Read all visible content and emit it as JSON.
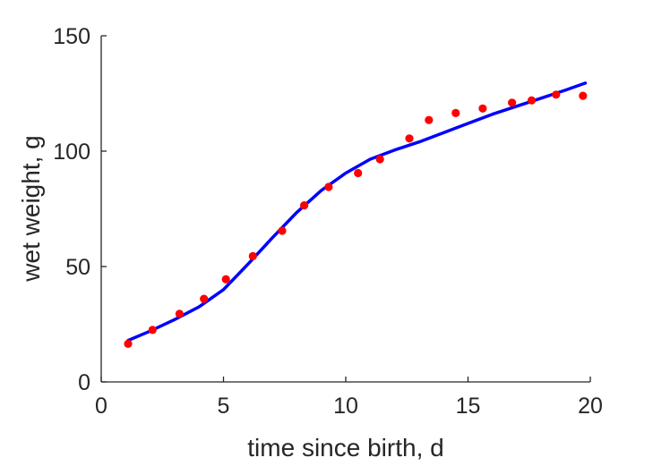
{
  "chart_data": {
    "type": "scatter",
    "xlabel": "time since birth, d",
    "ylabel": "wet weight, g",
    "xlim": [
      0,
      20
    ],
    "ylim": [
      0,
      150
    ],
    "x_ticks": [
      "0",
      "5",
      "10",
      "15",
      "20"
    ],
    "y_ticks": [
      "0",
      "50",
      "100",
      "150"
    ],
    "grid": false,
    "legend": "none",
    "series": [
      {
        "kind": "points",
        "color": "#ff0000",
        "points": [
          [
            1.1,
            16.5
          ],
          [
            2.1,
            22.5
          ],
          [
            3.2,
            29.5
          ],
          [
            4.2,
            36.0
          ],
          [
            5.1,
            44.5
          ],
          [
            6.2,
            54.5
          ],
          [
            7.4,
            65.5
          ],
          [
            8.3,
            76.5
          ],
          [
            9.3,
            84.5
          ],
          [
            10.5,
            90.5
          ],
          [
            11.4,
            96.5
          ],
          [
            12.6,
            105.5
          ],
          [
            13.4,
            113.5
          ],
          [
            14.5,
            116.5
          ],
          [
            15.6,
            118.5
          ],
          [
            16.8,
            121.0
          ],
          [
            17.6,
            122.0
          ],
          [
            18.6,
            124.5
          ],
          [
            19.7,
            124.0
          ]
        ]
      },
      {
        "kind": "line",
        "color": "#0000ff",
        "points": [
          [
            1.1,
            18.0
          ],
          [
            2.0,
            22.0
          ],
          [
            3.0,
            27.0
          ],
          [
            4.0,
            32.5
          ],
          [
            5.0,
            40.0
          ],
          [
            6.0,
            51.0
          ],
          [
            7.0,
            62.5
          ],
          [
            8.0,
            73.5
          ],
          [
            9.0,
            83.0
          ],
          [
            10.0,
            90.5
          ],
          [
            11.0,
            96.5
          ],
          [
            12.0,
            100.5
          ],
          [
            13.0,
            104.0
          ],
          [
            14.0,
            108.0
          ],
          [
            15.0,
            112.0
          ],
          [
            16.0,
            116.0
          ],
          [
            17.0,
            119.5
          ],
          [
            18.0,
            123.0
          ],
          [
            19.0,
            126.5
          ],
          [
            19.8,
            129.5
          ]
        ]
      }
    ]
  }
}
